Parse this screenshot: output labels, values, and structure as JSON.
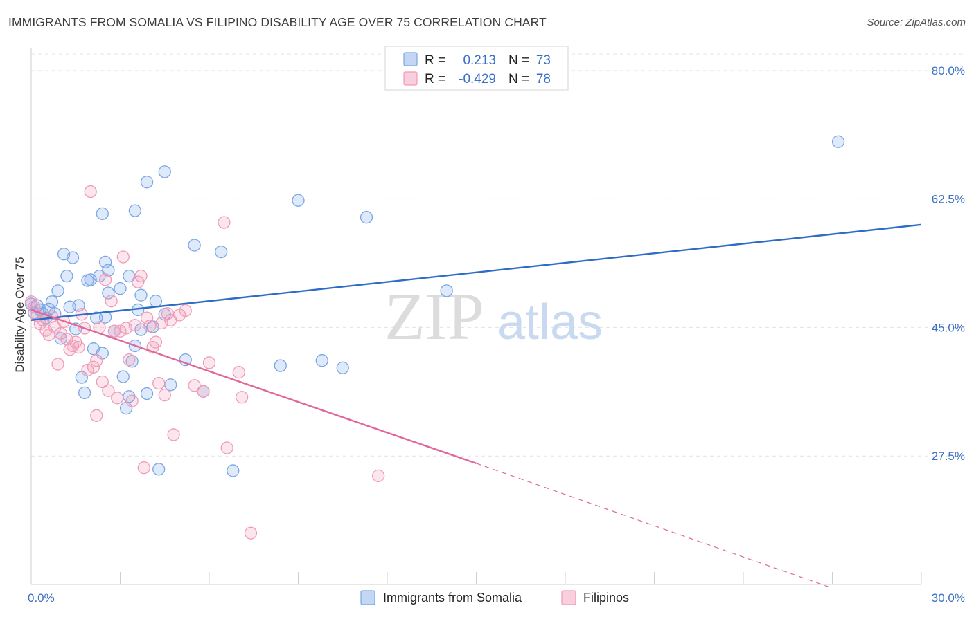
{
  "title": "IMMIGRANTS FROM SOMALIA VS FILIPINO DISABILITY AGE OVER 75 CORRELATION CHART",
  "source": "Source: ZipAtlas.com",
  "watermark": {
    "part1": "ZIP",
    "part2": "atlas"
  },
  "colors": {
    "somalia": "#7aa6e6",
    "somalia_line": "#2d6cc7",
    "filipinos": "#f19ab8",
    "filipinos_line": "#e0679a",
    "tick_text": "#3a6fc4",
    "grid": "#e3e3e3"
  },
  "chart_data": {
    "type": "scatter",
    "title": "IMMIGRANTS FROM SOMALIA VS FILIPINO DISABILITY AGE OVER 75 CORRELATION CHART",
    "xlabel": "",
    "ylabel": "Disability Age Over 75",
    "xlim": [
      0,
      30
    ],
    "ylim": [
      10,
      83
    ],
    "x_tick_labels": [
      {
        "value": 0,
        "label": "0.0%"
      },
      {
        "value": 30,
        "label": "30.0%"
      }
    ],
    "y_tick_labels": [
      {
        "value": 27.5,
        "label": "27.5%"
      },
      {
        "value": 45.0,
        "label": "45.0%"
      },
      {
        "value": 62.5,
        "label": "62.5%"
      },
      {
        "value": 80.0,
        "label": "80.0%"
      }
    ],
    "grid": "horizontal dashed",
    "legend_position": "top-center",
    "stats": [
      {
        "r_label": "R =",
        "r_value": "0.213",
        "n_label": "N =",
        "n_value": "73"
      },
      {
        "r_label": "R =",
        "r_value": "-0.429",
        "n_label": "N =",
        "n_value": "78"
      }
    ],
    "series": [
      {
        "name": "Immigrants from Somalia",
        "color": "#7aa6e6",
        "trend": {
          "x": [
            0,
            30
          ],
          "y": [
            46.0,
            59.0
          ],
          "dashed_from": null
        },
        "points": [
          [
            0.0,
            48.2
          ],
          [
            0.1,
            47.0
          ],
          [
            0.2,
            48.0
          ],
          [
            0.3,
            47.4
          ],
          [
            0.4,
            46.9
          ],
          [
            0.5,
            46.3
          ],
          [
            0.6,
            47.5
          ],
          [
            0.7,
            48.5
          ],
          [
            0.8,
            46.9
          ],
          [
            0.9,
            50.0
          ],
          [
            1.0,
            43.5
          ],
          [
            1.1,
            55.0
          ],
          [
            1.2,
            52.0
          ],
          [
            1.3,
            47.8
          ],
          [
            1.4,
            54.5
          ],
          [
            1.5,
            44.8
          ],
          [
            1.6,
            48.0
          ],
          [
            1.7,
            38.2
          ],
          [
            1.8,
            36.1
          ],
          [
            1.9,
            51.4
          ],
          [
            2.0,
            51.5
          ],
          [
            2.1,
            42.1
          ],
          [
            2.2,
            46.3
          ],
          [
            2.3,
            52.0
          ],
          [
            2.4,
            41.5
          ],
          [
            2.5,
            46.4
          ],
          [
            2.4,
            60.5
          ],
          [
            2.5,
            53.9
          ],
          [
            2.6,
            52.8
          ],
          [
            2.6,
            49.7
          ],
          [
            2.8,
            44.5
          ],
          [
            3.0,
            50.3
          ],
          [
            3.1,
            38.3
          ],
          [
            3.2,
            34.0
          ],
          [
            3.3,
            35.6
          ],
          [
            3.3,
            52.0
          ],
          [
            3.4,
            40.4
          ],
          [
            3.5,
            42.5
          ],
          [
            3.5,
            60.9
          ],
          [
            3.6,
            47.4
          ],
          [
            3.7,
            44.7
          ],
          [
            3.7,
            49.4
          ],
          [
            3.9,
            64.8
          ],
          [
            3.9,
            36.0
          ],
          [
            4.1,
            45.1
          ],
          [
            4.2,
            48.6
          ],
          [
            4.3,
            25.7
          ],
          [
            4.5,
            46.8
          ],
          [
            4.5,
            66.2
          ],
          [
            4.7,
            37.2
          ],
          [
            5.2,
            40.6
          ],
          [
            5.5,
            56.2
          ],
          [
            5.8,
            36.3
          ],
          [
            6.4,
            55.3
          ],
          [
            6.8,
            25.5
          ],
          [
            8.4,
            39.8
          ],
          [
            9.0,
            62.3
          ],
          [
            9.8,
            40.5
          ],
          [
            10.5,
            39.5
          ],
          [
            11.3,
            60.0
          ],
          [
            14.0,
            50.0
          ],
          [
            27.2,
            70.3
          ]
        ]
      },
      {
        "name": "Filipinos",
        "color": "#f19ab8",
        "trend": {
          "x": [
            0,
            15,
            27.0
          ],
          "y": [
            47.4,
            26.5,
            9.5
          ],
          "dashed_from": 15
        },
        "points": [
          [
            0.0,
            48.5
          ],
          [
            0.1,
            47.8
          ],
          [
            0.2,
            46.6
          ],
          [
            0.3,
            45.5
          ],
          [
            0.4,
            46.0
          ],
          [
            0.5,
            44.6
          ],
          [
            0.6,
            44.0
          ],
          [
            0.7,
            46.5
          ],
          [
            0.8,
            45.0
          ],
          [
            0.9,
            40.0
          ],
          [
            1.0,
            44.2
          ],
          [
            1.1,
            45.8
          ],
          [
            1.2,
            43.4
          ],
          [
            1.3,
            42.0
          ],
          [
            1.4,
            42.5
          ],
          [
            1.5,
            43.0
          ],
          [
            1.6,
            42.3
          ],
          [
            1.7,
            46.8
          ],
          [
            1.8,
            44.9
          ],
          [
            1.9,
            39.2
          ],
          [
            2.0,
            63.5
          ],
          [
            2.1,
            39.6
          ],
          [
            2.2,
            33.0
          ],
          [
            2.2,
            40.5
          ],
          [
            2.3,
            45.0
          ],
          [
            2.4,
            37.6
          ],
          [
            2.5,
            51.5
          ],
          [
            2.6,
            36.4
          ],
          [
            2.7,
            48.6
          ],
          [
            2.8,
            44.5
          ],
          [
            2.9,
            35.4
          ],
          [
            3.0,
            44.5
          ],
          [
            3.1,
            54.6
          ],
          [
            3.2,
            44.9
          ],
          [
            3.3,
            40.6
          ],
          [
            3.4,
            35.0
          ],
          [
            3.5,
            45.3
          ],
          [
            3.6,
            51.2
          ],
          [
            3.7,
            52.0
          ],
          [
            3.8,
            25.9
          ],
          [
            3.9,
            46.3
          ],
          [
            4.0,
            45.2
          ],
          [
            4.1,
            42.3
          ],
          [
            4.2,
            43.0
          ],
          [
            4.3,
            37.4
          ],
          [
            4.4,
            45.6
          ],
          [
            4.5,
            35.8
          ],
          [
            4.6,
            46.9
          ],
          [
            4.7,
            46.0
          ],
          [
            4.8,
            30.4
          ],
          [
            5.0,
            46.7
          ],
          [
            5.2,
            47.3
          ],
          [
            5.5,
            37.1
          ],
          [
            5.8,
            36.3
          ],
          [
            6.0,
            40.2
          ],
          [
            6.5,
            59.3
          ],
          [
            6.6,
            28.6
          ],
          [
            7.0,
            38.9
          ],
          [
            7.1,
            35.5
          ],
          [
            7.4,
            17.0
          ],
          [
            11.7,
            24.8
          ]
        ]
      }
    ]
  },
  "legend_bottom": [
    {
      "label": "Immigrants from Somalia"
    },
    {
      "label": "Filipinos"
    }
  ]
}
